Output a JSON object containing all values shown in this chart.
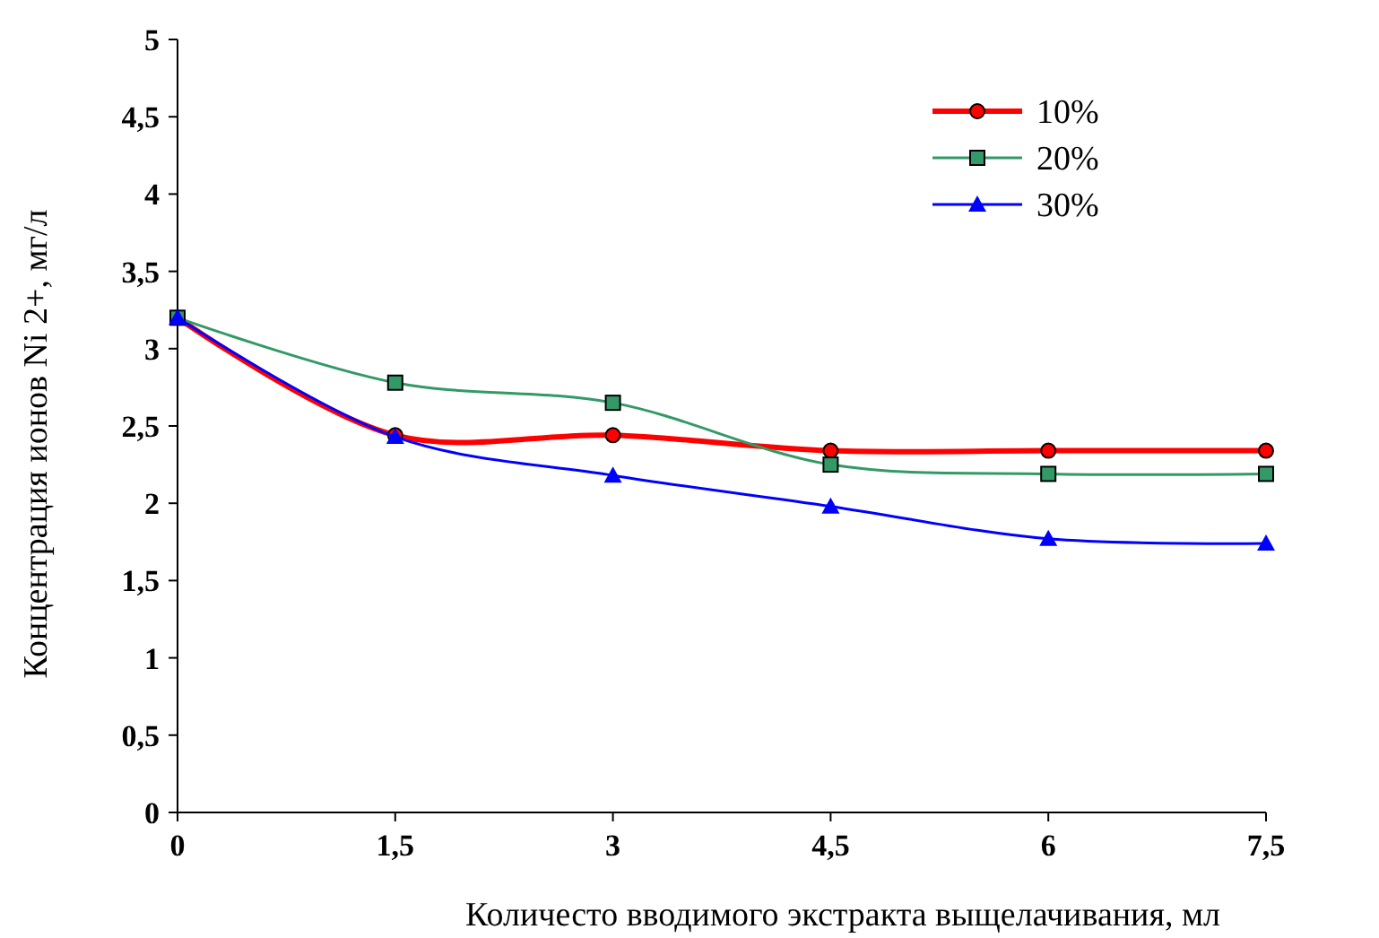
{
  "chart_data": {
    "type": "line",
    "xlabel": "Количесто вводимого экстракта выщелачивания, мл",
    "ylabel": "Концентрация ионов Ni 2+, мг/л",
    "x": [
      0,
      1.5,
      3,
      4.5,
      6,
      7.5
    ],
    "series": [
      {
        "name": "10%",
        "color": "#ff0000",
        "values": [
          3.2,
          2.44,
          2.44,
          2.34,
          2.34,
          2.34
        ],
        "marker": "circle"
      },
      {
        "name": "20%",
        "color": "#339966",
        "values": [
          3.2,
          2.78,
          2.65,
          2.25,
          2.19,
          2.19
        ],
        "marker": "square"
      },
      {
        "name": "30%",
        "color": "#0000ff",
        "values": [
          3.2,
          2.43,
          2.18,
          1.98,
          1.77,
          1.74
        ],
        "marker": "triangle"
      }
    ],
    "xlim": [
      0,
      7.5
    ],
    "ylim": [
      0,
      5
    ],
    "xticks": [
      0,
      {
        "value": 1.5,
        "label": "1,5"
      },
      3,
      {
        "value": 4.5,
        "label": "4,5"
      },
      6,
      {
        "value": 7.5,
        "label": "7,5"
      }
    ],
    "yticks": [
      0,
      {
        "value": 0.5,
        "label": "0,5"
      },
      1,
      {
        "value": 1.5,
        "label": "1,5"
      },
      2,
      {
        "value": 2.5,
        "label": "2,5"
      },
      3,
      {
        "value": 3.5,
        "label": "3,5"
      },
      4,
      {
        "value": 4.5,
        "label": "4,5"
      },
      5
    ],
    "grid": false,
    "legend": "top right",
    "line_style": "solid"
  }
}
